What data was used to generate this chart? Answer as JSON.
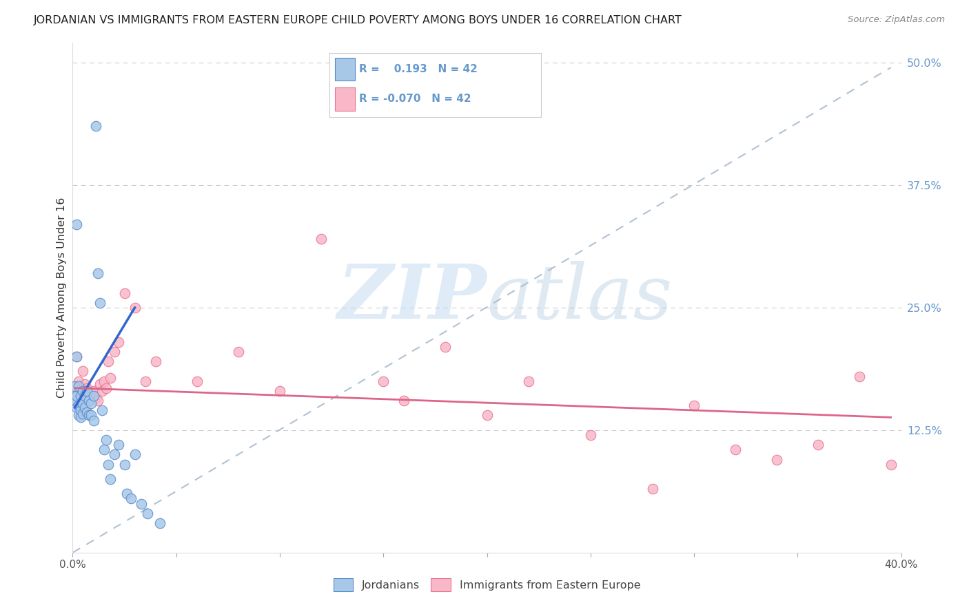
{
  "title": "JORDANIAN VS IMMIGRANTS FROM EASTERN EUROPE CHILD POVERTY AMONG BOYS UNDER 16 CORRELATION CHART",
  "source": "Source: ZipAtlas.com",
  "ylabel": "Child Poverty Among Boys Under 16",
  "legend1_label": "Jordanians",
  "legend2_label": "Immigrants from Eastern Europe",
  "R_blue": 0.193,
  "N_blue": 42,
  "R_pink": -0.07,
  "N_pink": 42,
  "blue_fill": "#a8c8e8",
  "pink_fill": "#f8b8c8",
  "blue_edge": "#5588cc",
  "pink_edge": "#e87090",
  "line_blue_color": "#3366cc",
  "line_pink_color": "#dd6688",
  "line_dash_color": "#aabbcc",
  "watermark_color": "#c8ddf0",
  "right_tick_color": "#6699cc",
  "xlim": [
    0.0,
    0.4
  ],
  "ylim": [
    0.0,
    0.52
  ],
  "right_ytick_vals": [
    0.125,
    0.25,
    0.375,
    0.5
  ],
  "right_ytick_labels": [
    "12.5%",
    "25.0%",
    "37.5%",
    "50.0%"
  ],
  "blue_x": [
    0.001,
    0.001,
    0.002,
    0.002,
    0.002,
    0.002,
    0.003,
    0.003,
    0.003,
    0.004,
    0.004,
    0.004,
    0.005,
    0.005,
    0.005,
    0.006,
    0.006,
    0.007,
    0.007,
    0.008,
    0.008,
    0.009,
    0.009,
    0.01,
    0.01,
    0.011,
    0.012,
    0.013,
    0.014,
    0.015,
    0.016,
    0.017,
    0.018,
    0.02,
    0.022,
    0.025,
    0.026,
    0.028,
    0.03,
    0.033,
    0.036,
    0.042
  ],
  "blue_y": [
    0.17,
    0.155,
    0.335,
    0.2,
    0.16,
    0.148,
    0.17,
    0.15,
    0.14,
    0.16,
    0.145,
    0.138,
    0.165,
    0.152,
    0.142,
    0.16,
    0.148,
    0.165,
    0.143,
    0.155,
    0.14,
    0.152,
    0.14,
    0.16,
    0.135,
    0.435,
    0.285,
    0.255,
    0.145,
    0.105,
    0.115,
    0.09,
    0.075,
    0.1,
    0.11,
    0.09,
    0.06,
    0.055,
    0.1,
    0.05,
    0.04,
    0.03
  ],
  "pink_x": [
    0.001,
    0.002,
    0.003,
    0.003,
    0.004,
    0.005,
    0.006,
    0.007,
    0.008,
    0.009,
    0.01,
    0.011,
    0.012,
    0.013,
    0.014,
    0.015,
    0.016,
    0.017,
    0.018,
    0.02,
    0.022,
    0.025,
    0.03,
    0.035,
    0.04,
    0.06,
    0.08,
    0.1,
    0.12,
    0.15,
    0.16,
    0.18,
    0.2,
    0.22,
    0.25,
    0.28,
    0.3,
    0.32,
    0.34,
    0.36,
    0.38,
    0.395
  ],
  "pink_y": [
    0.16,
    0.2,
    0.175,
    0.155,
    0.165,
    0.185,
    0.172,
    0.168,
    0.155,
    0.158,
    0.165,
    0.158,
    0.155,
    0.172,
    0.165,
    0.175,
    0.168,
    0.195,
    0.178,
    0.205,
    0.215,
    0.265,
    0.25,
    0.175,
    0.195,
    0.175,
    0.205,
    0.165,
    0.32,
    0.175,
    0.155,
    0.21,
    0.14,
    0.175,
    0.12,
    0.065,
    0.15,
    0.105,
    0.095,
    0.11,
    0.18,
    0.09
  ],
  "blue_line_x": [
    0.001,
    0.03
  ],
  "blue_line_y_start": 0.148,
  "blue_line_y_end": 0.25,
  "pink_line_x": [
    0.001,
    0.395
  ],
  "pink_line_y_start": 0.168,
  "pink_line_y_end": 0.138,
  "dash_line_x": [
    0.0,
    0.395
  ],
  "dash_line_y": [
    0.0,
    0.495
  ]
}
